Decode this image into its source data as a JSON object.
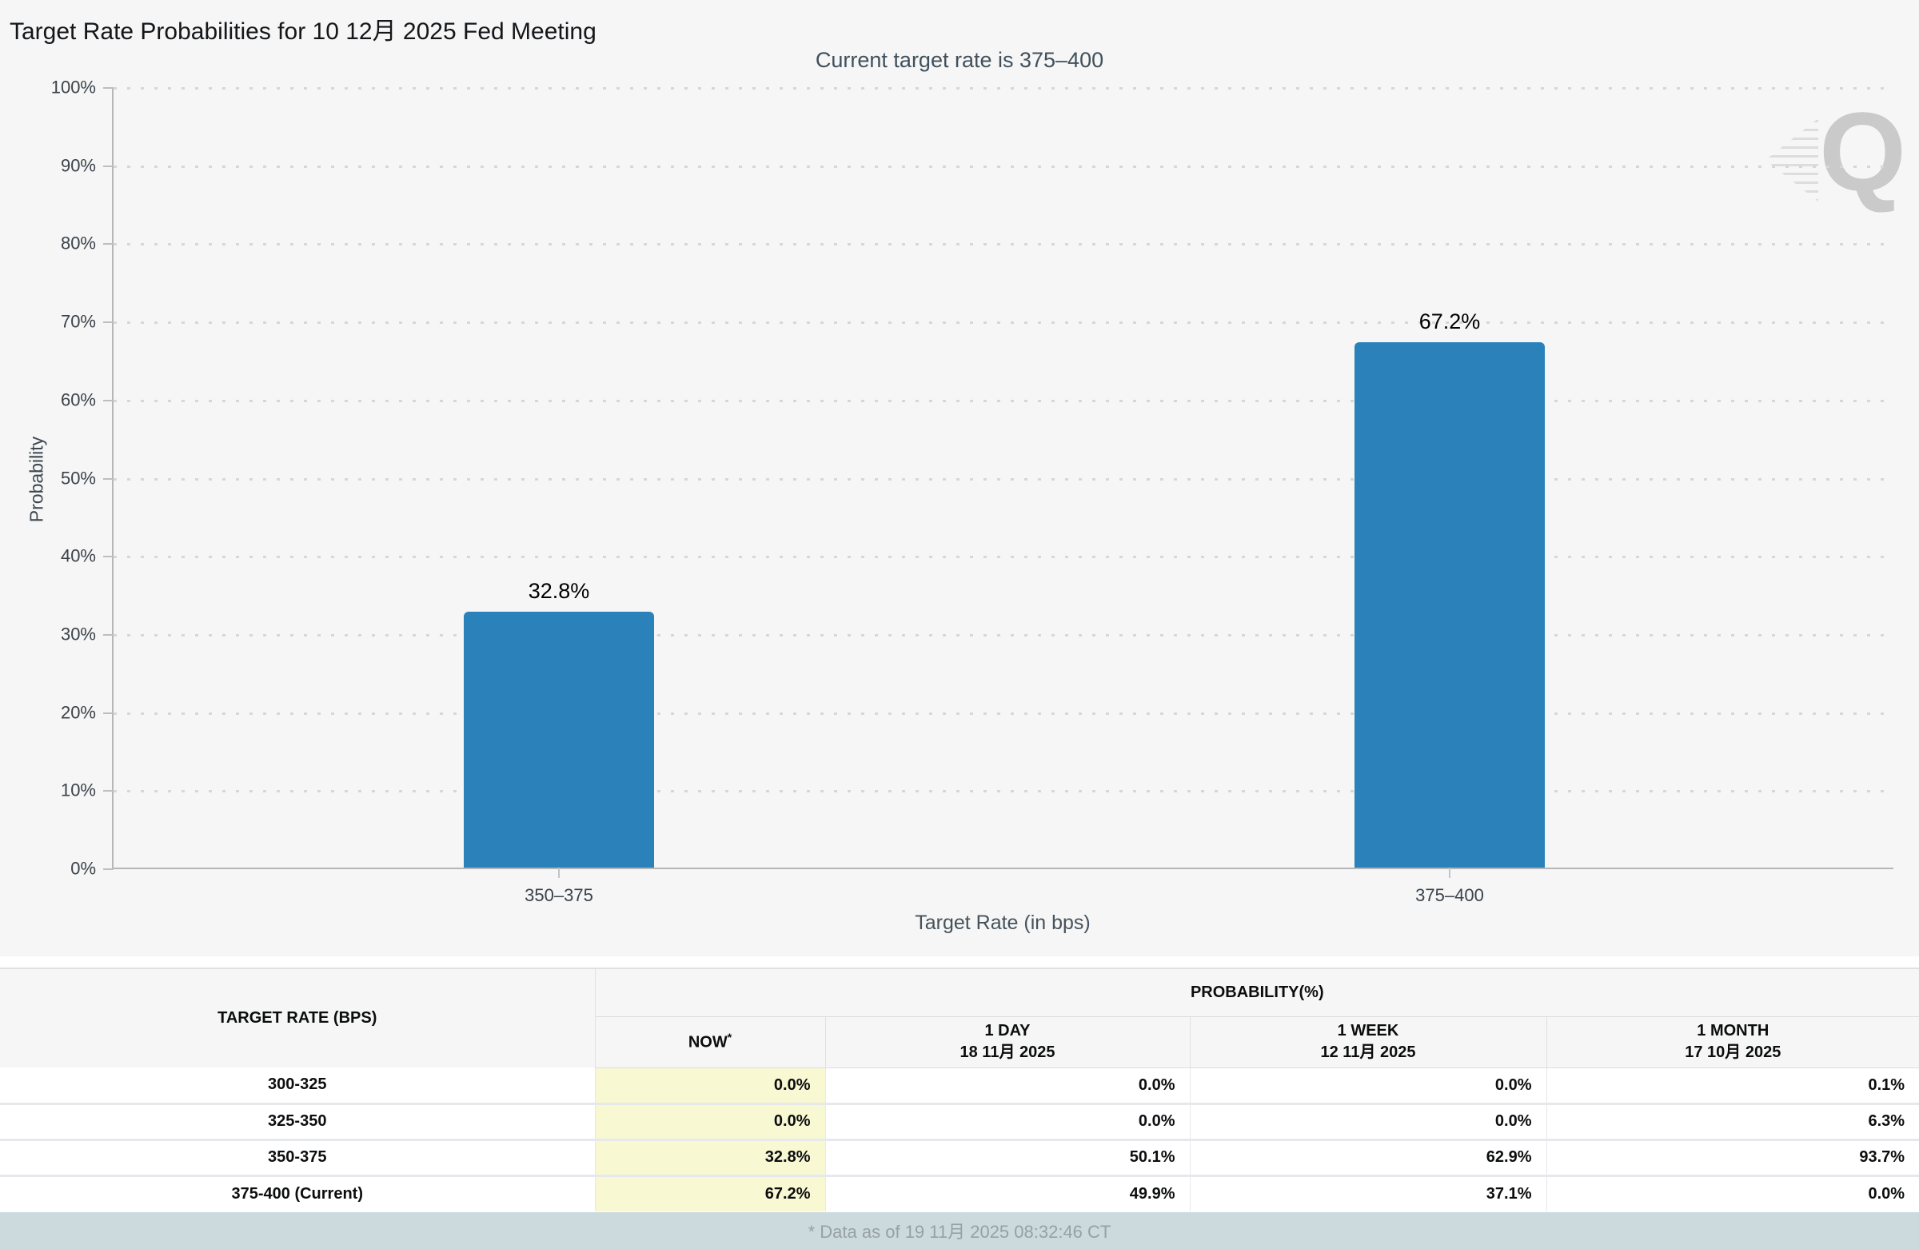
{
  "header": {
    "title": "Target Rate Probabilities for 10 12月 2025 Fed Meeting",
    "menu_icon": "hamburger-menu"
  },
  "chart": {
    "subtitle": "Current target rate is 375–400",
    "watermark_letter": "Q"
  },
  "chart_data": {
    "type": "bar",
    "title": "Target Rate Probabilities for 10 12月 2025 Fed Meeting",
    "subtitle": "Current target rate is 375–400",
    "categories": [
      "350–375",
      "375–400"
    ],
    "values": [
      32.8,
      67.2
    ],
    "value_labels": [
      "32.8%",
      "67.2%"
    ],
    "xlabel": "Target Rate (in bps)",
    "ylabel": "Probability",
    "ylim": [
      0,
      100
    ],
    "ytick_step": 10,
    "ytick_suffix": "%",
    "grid": "horizontal-dotted",
    "legend": "none",
    "bar_color": "#2b81ba"
  },
  "table": {
    "col1_header": "TARGET RATE (BPS)",
    "group_header": "PROBABILITY(%)",
    "columns": [
      {
        "label": "NOW",
        "sup": "*",
        "date": ""
      },
      {
        "label": "1 DAY",
        "date": "18 11月 2025"
      },
      {
        "label": "1 WEEK",
        "date": "12 11月 2025"
      },
      {
        "label": "1 MONTH",
        "date": "17 10月 2025"
      }
    ],
    "rows": [
      {
        "rate": "300-325",
        "values": [
          "0.0%",
          "0.0%",
          "0.0%",
          "0.1%"
        ]
      },
      {
        "rate": "325-350",
        "values": [
          "0.0%",
          "0.0%",
          "0.0%",
          "6.3%"
        ]
      },
      {
        "rate": "350-375",
        "values": [
          "32.8%",
          "50.1%",
          "62.9%",
          "93.7%"
        ]
      },
      {
        "rate": "375-400 (Current)",
        "values": [
          "67.2%",
          "49.9%",
          "37.1%",
          "0.0%"
        ]
      }
    ]
  },
  "footer": {
    "note": "* Data as of 19 11月 2025 08:32:46 CT"
  },
  "colors": {
    "bar": "#2b81ba",
    "panel_bg": "#f5f6f5",
    "now_column_bg": "#f8f8d3",
    "footer_bg": "#ccdade",
    "footer_text": "#97a0a5",
    "axis_line": "#b5b6b8",
    "gridline": "#d7d7d7",
    "watermark": "#c9cac9"
  }
}
